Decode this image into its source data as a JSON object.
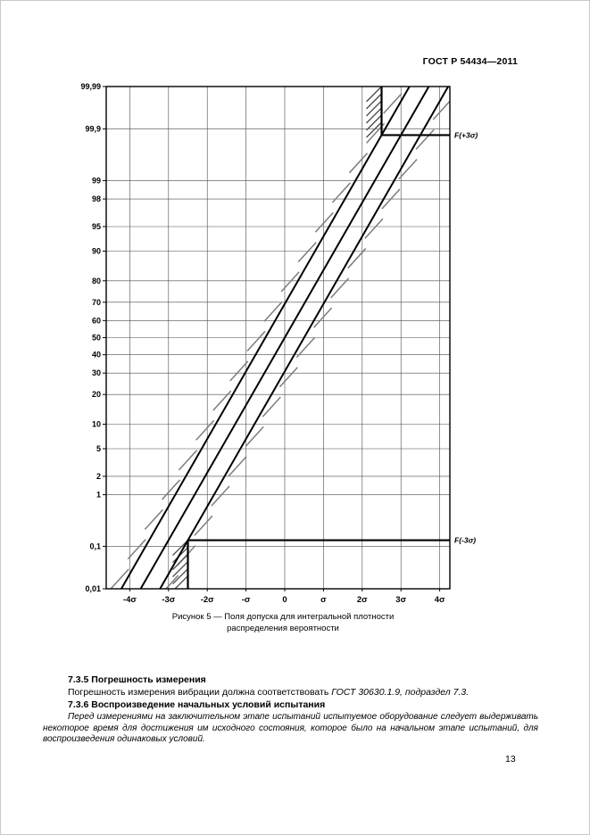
{
  "page": {
    "header": "ГОСТ Р 54434—2011",
    "page_number": "13"
  },
  "figure": {
    "caption_line1": "Рисунок 5 — Поля допуска для интегральной плотности",
    "caption_line2": "распределения вероятности"
  },
  "chart_data": {
    "type": "line",
    "title": "Поля допуска для интегральной плотности распределения вероятности",
    "y_scale": "normal-probability",
    "colors": {
      "line": "#000000",
      "hatch_light": "#7d7d7d",
      "hatch_dark": "#4a4a4a",
      "grid": "#4a4a4a"
    },
    "x_axis": {
      "unit": "σ",
      "min": -4,
      "max": 4,
      "ticks": [
        {
          "label": "-4σ",
          "value": -4
        },
        {
          "label": "-3σ",
          "value": -3
        },
        {
          "label": "-2σ",
          "value": -2
        },
        {
          "label": "-σ",
          "value": -1
        },
        {
          "label": "0",
          "value": 0
        },
        {
          "label": "σ",
          "value": 1
        },
        {
          "label": "2σ",
          "value": 2
        },
        {
          "label": "3σ",
          "value": 3
        },
        {
          "label": "4σ",
          "value": 4
        }
      ]
    },
    "y_axis": {
      "unit": "%",
      "ticks": [
        {
          "label": "99,99",
          "p": 99.99
        },
        {
          "label": "99,9",
          "p": 99.9
        },
        {
          "label": "99",
          "p": 99
        },
        {
          "label": "98",
          "p": 98
        },
        {
          "label": "95",
          "p": 95
        },
        {
          "label": "90",
          "p": 90
        },
        {
          "label": "80",
          "p": 80
        },
        {
          "label": "70",
          "p": 70
        },
        {
          "label": "60",
          "p": 60
        },
        {
          "label": "50",
          "p": 50
        },
        {
          "label": "40",
          "p": 40
        },
        {
          "label": "30",
          "p": 30
        },
        {
          "label": "20",
          "p": 20
        },
        {
          "label": "10",
          "p": 10
        },
        {
          "label": "5",
          "p": 5
        },
        {
          "label": "2",
          "p": 2
        },
        {
          "label": "1",
          "p": 1
        },
        {
          "label": "0,1",
          "p": 0.1
        },
        {
          "label": "0,01",
          "p": 0.01
        }
      ]
    },
    "lines": [
      {
        "name": "tolerance-left-line",
        "offset_sigma": -0.5,
        "hatch_side": "left"
      },
      {
        "name": "nominal-cdf-line",
        "offset_sigma": 0
      },
      {
        "name": "tolerance-right-line",
        "offset_sigma": 0.5,
        "hatch_side": "right"
      }
    ],
    "boundaries": [
      {
        "name": "f-plus-3sigma",
        "label": "F(+3σ)",
        "p": 99.865,
        "x_from_sigma": 2.5
      },
      {
        "name": "f-minus-3sigma",
        "label": "F(-3σ)",
        "p": 0.135,
        "x_from_sigma": -2.5
      },
      {
        "name": "vertical-top-boundary",
        "x_sigma": 2.5,
        "from_p": 99.865,
        "to_p": 99.99,
        "hatch_side": "left"
      },
      {
        "name": "vertical-bottom-boundary",
        "x_sigma": -2.5,
        "from_p": 0.01,
        "to_p": 0.135,
        "hatch_side": "left"
      }
    ]
  },
  "sections": {
    "s735_title": "7.3.5 Погрешность измерения",
    "s735_body_normal": "Погрешность измерения вибрации должна соответствовать ",
    "s735_body_italic": "ГОСТ 30630.1.9, подраздел 7.3.",
    "s736_title": "7.3.6 Воспроизведение начальных условий испытания",
    "s736_body": "Перед измерениями на заключительном этапе испытаний испытуемое оборудование следует выдерживать некоторое время для достижения им исходного состояния, которое было на начальном этапе испытаний, для воспроизведения одинаковых условий."
  }
}
